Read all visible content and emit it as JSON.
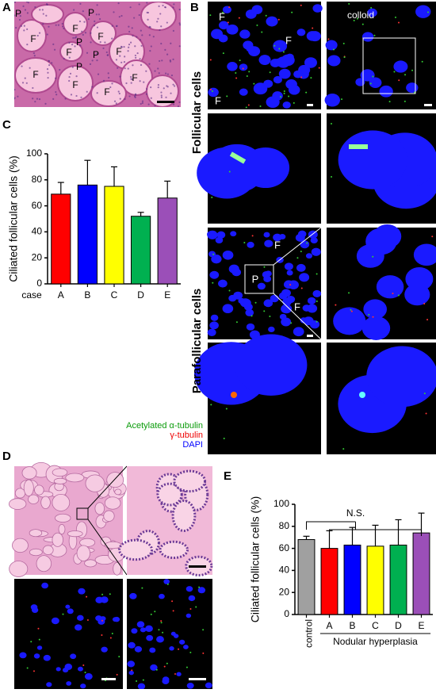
{
  "panel_labels": [
    "A",
    "B",
    "C",
    "D",
    "E"
  ],
  "panel_a": {
    "labels": [
      "P",
      "P",
      "F",
      "F",
      "F",
      "P",
      "F",
      "P",
      "P",
      "F",
      "F",
      "F",
      "F",
      "F"
    ]
  },
  "panel_b": {
    "image_labels": [
      "F",
      "F",
      "F",
      "colloid",
      "F",
      "P",
      "F"
    ],
    "row_labels": [
      "Follicular cells",
      "Parafollicular cells"
    ]
  },
  "legend": [
    "Acetylated α-tubulin",
    "γ-tubulin",
    "DAPI"
  ],
  "chart_data": [
    {
      "type": "bar",
      "y_axis_label": "Ciliated follicular cells (%)",
      "x_axis_label": "case",
      "categories": [
        "A",
        "B",
        "C",
        "D",
        "E"
      ],
      "values": [
        69,
        76,
        75,
        52,
        66
      ],
      "errors": [
        9,
        19,
        15,
        3,
        13
      ],
      "colors": [
        "#ff0000",
        "#0000ff",
        "#ffff00",
        "#00b050",
        "#9b4fb8"
      ],
      "ylim": [
        0,
        100
      ],
      "yticks": [
        0,
        20,
        40,
        60,
        80,
        100
      ]
    },
    {
      "type": "bar",
      "y_axis_label": "Ciliated follicular cells (%)",
      "x_group_label": "Nodular hyperplasia",
      "annotation": "N.S.",
      "categories": [
        "control",
        "A",
        "B",
        "C",
        "D",
        "E"
      ],
      "values": [
        68,
        60,
        63,
        62,
        63,
        74
      ],
      "errors": [
        3,
        16,
        16,
        19,
        23,
        18
      ],
      "colors": [
        "#a0a0a0",
        "#ff0000",
        "#0000ff",
        "#ffff00",
        "#00b050",
        "#9b4fb8"
      ],
      "ylim": [
        0,
        100
      ],
      "yticks": [
        0,
        20,
        40,
        60,
        80,
        100
      ]
    }
  ]
}
